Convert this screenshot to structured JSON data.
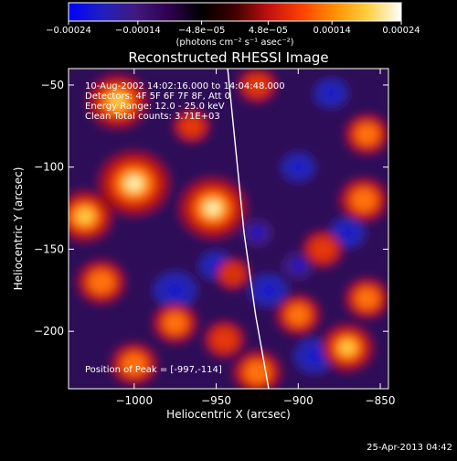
{
  "chart_data": {
    "type": "heatmap",
    "title": "Reconstructed RHESSI Image",
    "xlabel": "Heliocentric X (arcsec)",
    "ylabel": "Heliocentric Y (arcsec)",
    "xlim": [
      -1040,
      -845
    ],
    "ylim": [
      -235,
      -40
    ],
    "xticks": [
      -1000,
      -950,
      -900,
      -850
    ],
    "xtick_labels": [
      "−1000",
      "−950",
      "−900",
      "−850"
    ],
    "yticks": [
      -50,
      -100,
      -150,
      -200
    ],
    "ytick_labels": [
      "−50",
      "−100",
      "−150",
      "−200"
    ],
    "colorbar": {
      "range": [
        -0.00024,
        0.00024
      ],
      "ticks": [
        -0.00024,
        -0.00014,
        -4.8e-05,
        4.8e-05,
        0.00014,
        0.00024
      ],
      "tick_labels": [
        "−0.00024",
        "−0.00014",
        "−4.8e−05",
        "4.8e−05",
        "0.00014",
        "0.00024"
      ],
      "units_label": "(photons cm⁻² s⁻¹ asec⁻²)",
      "colors": [
        "#0000ff",
        "#2020c0",
        "#401a80",
        "#300050",
        "#000000",
        "#400000",
        "#c01010",
        "#ff4000",
        "#ff9000",
        "#ffd040",
        "#ffffff"
      ]
    },
    "annotations": [
      "10-Aug-2002 14:02:16.000 to 14:04:48.000",
      "Detectors: 4F 5F 6F 7F 8F, Att 0",
      "Energy Range: 12.0 - 25.0 keV",
      "Clean     Total counts: 3.71E+03"
    ],
    "peak_label": "Position of Peak = [-997,-114]",
    "peak": [
      -997,
      -114
    ],
    "hot_spots": [
      {
        "x": -1000,
        "y": -110,
        "value": 0.00024
      },
      {
        "x": -1010,
        "y": -60,
        "value": 0.00018
      },
      {
        "x": -1030,
        "y": -130,
        "value": 0.00016
      },
      {
        "x": -952,
        "y": -125,
        "value": 0.00022
      },
      {
        "x": -1020,
        "y": -170,
        "value": 0.00012
      },
      {
        "x": -1000,
        "y": -220,
        "value": 0.00011
      },
      {
        "x": -975,
        "y": -195,
        "value": 0.0001
      },
      {
        "x": -945,
        "y": -205,
        "value": 8e-05
      },
      {
        "x": -925,
        "y": -225,
        "value": 0.00012
      },
      {
        "x": -900,
        "y": -190,
        "value": 0.0001
      },
      {
        "x": -870,
        "y": -210,
        "value": 0.00014
      },
      {
        "x": -858,
        "y": -180,
        "value": 0.0001
      },
      {
        "x": -885,
        "y": -150,
        "value": 8e-05
      },
      {
        "x": -860,
        "y": -120,
        "value": 0.00012
      },
      {
        "x": -858,
        "y": -80,
        "value": 0.0001
      },
      {
        "x": -925,
        "y": -50,
        "value": 7e-05
      },
      {
        "x": -965,
        "y": -75,
        "value": 6e-05
      },
      {
        "x": -940,
        "y": -165,
        "value": 5e-05
      }
    ],
    "cold_spots": [
      {
        "x": -975,
        "y": -175,
        "value": -0.00012
      },
      {
        "x": -918,
        "y": -175,
        "value": -0.0001
      },
      {
        "x": -900,
        "y": -100,
        "value": -8e-05
      },
      {
        "x": -925,
        "y": -140,
        "value": -7e-05
      },
      {
        "x": -890,
        "y": -215,
        "value": -0.00011
      },
      {
        "x": -870,
        "y": -140,
        "value": -9e-05
      },
      {
        "x": -880,
        "y": -55,
        "value": -8e-05
      },
      {
        "x": -950,
        "y": -160,
        "value": -8e-05
      },
      {
        "x": -900,
        "y": -160,
        "value": -7e-05
      }
    ],
    "limb_curve": [
      {
        "x": -943,
        "y": -40
      },
      {
        "x": -938,
        "y": -90
      },
      {
        "x": -933,
        "y": -140
      },
      {
        "x": -926,
        "y": -190
      },
      {
        "x": -918,
        "y": -235
      }
    ]
  },
  "footer": {
    "timestamp": "25-Apr-2013 04:42"
  }
}
